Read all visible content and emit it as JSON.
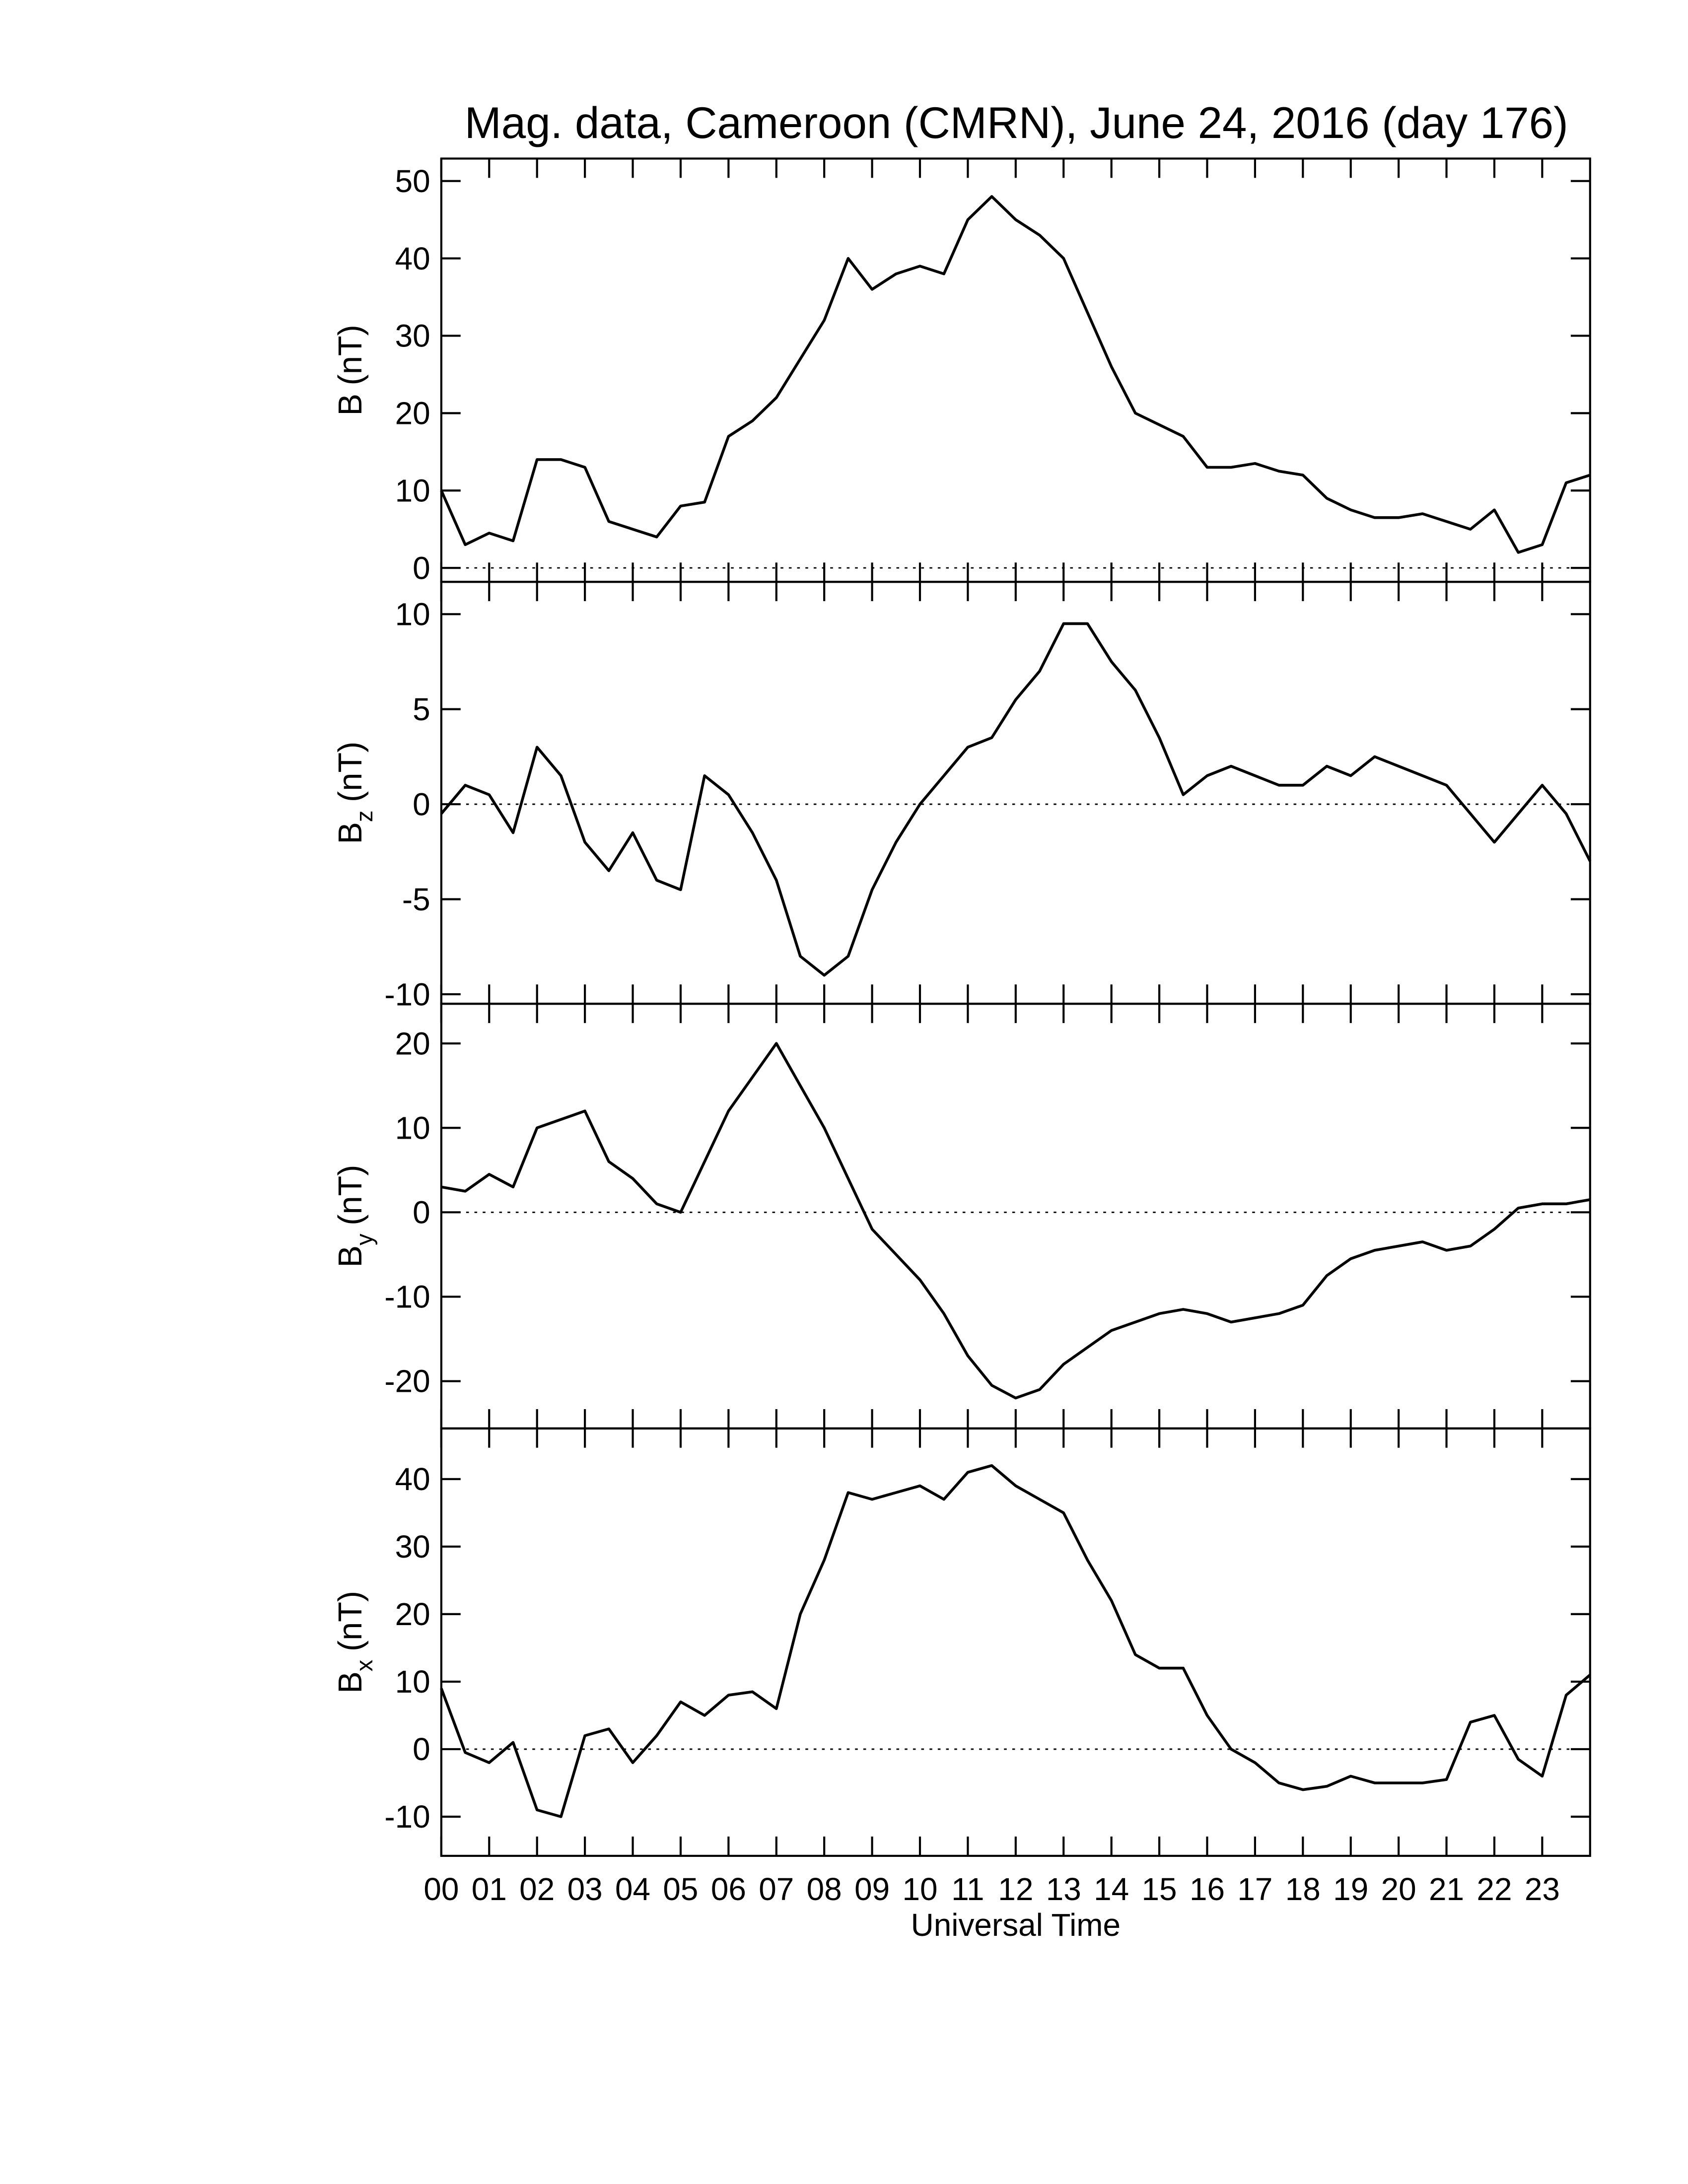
{
  "chart_data": [
    {
      "type": "line",
      "title": "Mag. data, Cameroon (CMRN), June 24, 2016 (day 176)",
      "ylabel": {
        "symbol": "B",
        "unit": "(nT)"
      },
      "x": [
        0,
        0.5,
        1,
        1.5,
        2,
        2.5,
        3,
        3.5,
        4,
        4.5,
        5,
        5.5,
        6,
        6.5,
        7,
        7.5,
        8,
        8.5,
        9,
        9.5,
        10,
        10.5,
        11,
        11.5,
        12,
        12.5,
        13,
        13.5,
        14,
        14.5,
        15,
        15.5,
        16,
        16.5,
        17,
        17.5,
        18,
        18.5,
        19,
        19.5,
        20,
        20.5,
        21,
        21.5,
        22,
        22.5,
        23,
        23.5,
        24
      ],
      "series": [
        {
          "color": "#000000",
          "values": [
            10,
            3,
            4.5,
            3.5,
            14,
            14,
            13,
            6,
            5,
            4,
            8,
            8.5,
            17,
            19,
            22,
            27,
            32,
            40,
            36,
            38,
            39,
            38,
            45,
            48,
            45,
            43,
            40,
            33,
            26,
            20,
            18.5,
            17,
            13,
            13,
            13.5,
            12.5,
            12,
            9,
            7.5,
            6.5,
            6.5,
            7,
            6,
            5,
            7.5,
            2,
            3,
            11,
            12
          ]
        }
      ],
      "xlim": [
        0,
        24
      ],
      "ylim": [
        -1.8,
        52.9
      ],
      "yticks": [
        0,
        10,
        20,
        30,
        40,
        50
      ],
      "zero_line": true
    },
    {
      "type": "line",
      "ylabel": {
        "symbol": "B",
        "subscript": "z",
        "unit": "(nT)"
      },
      "x": [
        0,
        0.5,
        1,
        1.5,
        2,
        2.5,
        3,
        3.5,
        4,
        4.5,
        5,
        5.5,
        6,
        6.5,
        7,
        7.5,
        8,
        8.5,
        9,
        9.5,
        10,
        10.5,
        11,
        11.5,
        12,
        12.5,
        13,
        13.5,
        14,
        14.5,
        15,
        15.5,
        16,
        16.5,
        17,
        17.5,
        18,
        18.5,
        19,
        19.5,
        20,
        20.5,
        21,
        21.5,
        22,
        22.5,
        23,
        23.5,
        24
      ],
      "series": [
        {
          "color": "#000000",
          "values": [
            -0.5,
            1,
            0.5,
            -1.5,
            3,
            1.5,
            -2,
            -3.5,
            -1.5,
            -4,
            -4.5,
            1.5,
            0.5,
            -1.5,
            -4,
            -8,
            -9,
            -8,
            -4.5,
            -2,
            0,
            1.5,
            3,
            3.5,
            5.5,
            7,
            9.5,
            9.5,
            7.5,
            6,
            3.5,
            0.5,
            1.5,
            2,
            1.5,
            1,
            1,
            2,
            1.5,
            2.5,
            2,
            1.5,
            1,
            -0.5,
            -2,
            -0.5,
            1,
            -0.5,
            -3
          ]
        }
      ],
      "xlim": [
        0,
        24
      ],
      "ylim": [
        -10.5,
        11.7
      ],
      "yticks": [
        -10,
        -5,
        0,
        5,
        10
      ],
      "zero_line": true
    },
    {
      "type": "line",
      "ylabel": {
        "symbol": "B",
        "subscript": "y",
        "unit": "(nT)"
      },
      "x": [
        0,
        0.5,
        1,
        1.5,
        2,
        2.5,
        3,
        3.5,
        4,
        4.5,
        5,
        5.5,
        6,
        6.5,
        7,
        7.5,
        8,
        8.5,
        9,
        9.5,
        10,
        10.5,
        11,
        11.5,
        12,
        12.5,
        13,
        13.5,
        14,
        14.5,
        15,
        15.5,
        16,
        16.5,
        17,
        17.5,
        18,
        18.5,
        19,
        19.5,
        20,
        20.5,
        21,
        21.5,
        22,
        22.5,
        23,
        23.5,
        24
      ],
      "series": [
        {
          "color": "#000000",
          "values": [
            3,
            2.5,
            4.5,
            3,
            10,
            11,
            12,
            6,
            4,
            1,
            0,
            6,
            12,
            16,
            20,
            15,
            10,
            4,
            -2,
            -5,
            -8,
            -12,
            -17,
            -20.5,
            -22,
            -21,
            -18,
            -16,
            -14,
            -13,
            -12,
            -11.5,
            -12,
            -13,
            -12.5,
            -12,
            -11,
            -7.5,
            -5.5,
            -4.5,
            -4,
            -3.5,
            -4.5,
            -4,
            -2,
            0.5,
            1,
            1,
            1.5
          ]
        }
      ],
      "xlim": [
        0,
        24
      ],
      "ylim": [
        -25.6,
        24.7
      ],
      "yticks": [
        -20,
        -10,
        0,
        10,
        20
      ],
      "zero_line": true
    },
    {
      "type": "line",
      "ylabel": {
        "symbol": "B",
        "subscript": "x",
        "unit": "(nT)"
      },
      "xlabel": "Universal Time",
      "x": [
        0,
        0.5,
        1,
        1.5,
        2,
        2.5,
        3,
        3.5,
        4,
        4.5,
        5,
        5.5,
        6,
        6.5,
        7,
        7.5,
        8,
        8.5,
        9,
        9.5,
        10,
        10.5,
        11,
        11.5,
        12,
        12.5,
        13,
        13.5,
        14,
        14.5,
        15,
        15.5,
        16,
        16.5,
        17,
        17.5,
        18,
        18.5,
        19,
        19.5,
        20,
        20.5,
        21,
        21.5,
        22,
        22.5,
        23,
        23.5,
        24
      ],
      "series": [
        {
          "color": "#000000",
          "values": [
            9,
            -0.5,
            -2,
            1,
            -9,
            -10,
            2,
            3,
            -2,
            2,
            7,
            5,
            8,
            8.5,
            6,
            20,
            28,
            38,
            37,
            38,
            39,
            37,
            41,
            42,
            39,
            37,
            35,
            28,
            22,
            14,
            12,
            12,
            5,
            0,
            -2,
            -5,
            -6,
            -5.5,
            -4,
            -5,
            -5,
            -5,
            -4.5,
            4,
            5,
            -1.5,
            -4,
            8,
            11
          ]
        }
      ],
      "xlim": [
        0,
        24
      ],
      "ylim": [
        -15.8,
        47.5
      ],
      "yticks": [
        -10,
        0,
        10,
        20,
        30,
        40
      ],
      "zero_line": true,
      "xticks": [
        {
          "value": 0,
          "label": "00"
        },
        {
          "value": 1,
          "label": "01"
        },
        {
          "value": 2,
          "label": "02"
        },
        {
          "value": 3,
          "label": "03"
        },
        {
          "value": 4,
          "label": "04"
        },
        {
          "value": 5,
          "label": "05"
        },
        {
          "value": 6,
          "label": "06"
        },
        {
          "value": 7,
          "label": "07"
        },
        {
          "value": 8,
          "label": "08"
        },
        {
          "value": 9,
          "label": "09"
        },
        {
          "value": 10,
          "label": "10"
        },
        {
          "value": 11,
          "label": "11"
        },
        {
          "value": 12,
          "label": "12"
        },
        {
          "value": 13,
          "label": "13"
        },
        {
          "value": 14,
          "label": "14"
        },
        {
          "value": 15,
          "label": "15"
        },
        {
          "value": 16,
          "label": "16"
        },
        {
          "value": 17,
          "label": "17"
        },
        {
          "value": 18,
          "label": "18"
        },
        {
          "value": 19,
          "label": "19"
        },
        {
          "value": 20,
          "label": "20"
        },
        {
          "value": 21,
          "label": "21"
        },
        {
          "value": 22,
          "label": "22"
        },
        {
          "value": 23,
          "label": "23"
        }
      ]
    }
  ]
}
